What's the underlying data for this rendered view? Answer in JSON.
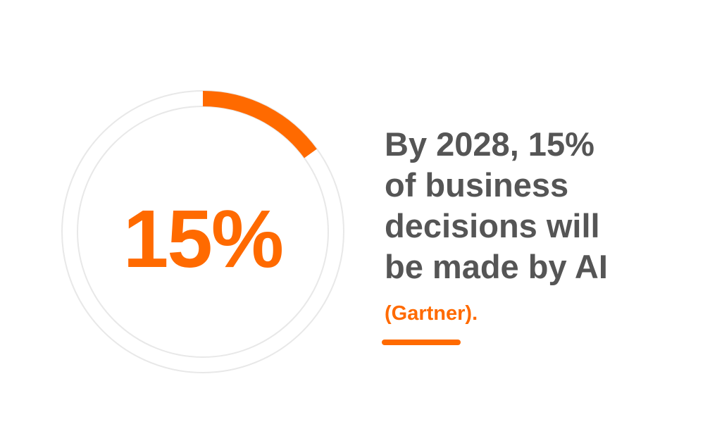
{
  "colors": {
    "accent": "#ff6a00",
    "text": "#555555",
    "track": "#e8e8e8",
    "background": "#ffffff"
  },
  "gauge": {
    "value_text": "15%",
    "fraction": 0.15
  },
  "headline": {
    "lines": [
      "By 2028, 15%",
      "of business",
      "decisions will",
      "be made by AI"
    ]
  },
  "source": {
    "text": "(Gartner)."
  }
}
